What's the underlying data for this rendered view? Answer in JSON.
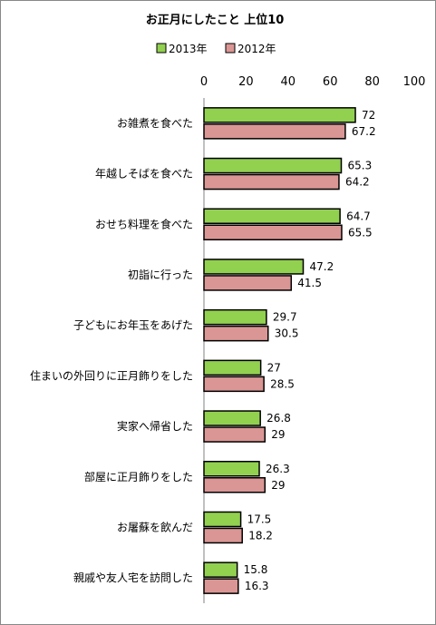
{
  "chart_data": {
    "type": "bar",
    "orientation": "horizontal",
    "title": "お正月にしたこと 上位10",
    "xlim": [
      0,
      100
    ],
    "x_ticks": [
      "0",
      "20",
      "40",
      "60",
      "80",
      "100"
    ],
    "grid": false,
    "legend_position": "top",
    "categories": [
      "お雑煮を食べた",
      "年越しそばを食べた",
      "おせち料理を食べた",
      "初詣に行った",
      "子どもにお年玉をあげた",
      "住まいの外回りに正月飾りをした",
      "実家へ帰省した",
      "部屋に正月飾りをした",
      "お屠蘇を飲んだ",
      "親戚や友人宅を訪問した"
    ],
    "series": [
      {
        "name": "2013年",
        "color": "#92d050",
        "values": [
          72,
          65.3,
          64.7,
          47.2,
          29.7,
          27,
          26.8,
          26.3,
          17.5,
          15.8
        ],
        "labels": [
          "72",
          "65.3",
          "64.7",
          "47.2",
          "29.7",
          "27",
          "26.8",
          "26.3",
          "17.5",
          "15.8"
        ]
      },
      {
        "name": "2012年",
        "color": "#da9694",
        "values": [
          67.2,
          64.2,
          65.5,
          41.5,
          30.5,
          28.5,
          29,
          29,
          18.2,
          16.3
        ],
        "labels": [
          "67.2",
          "64.2",
          "65.5",
          "41.5",
          "30.5",
          "28.5",
          "29",
          "29",
          "18.2",
          "16.3"
        ]
      }
    ]
  }
}
